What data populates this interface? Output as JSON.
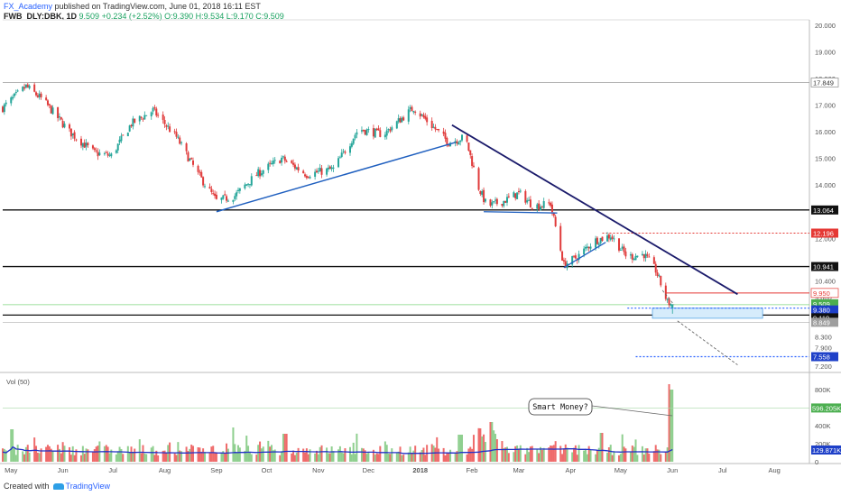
{
  "header": {
    "author": "FX_Academy",
    "published": "published on TradingView.com, June 01, 2018 16:11 EST",
    "symbol": "FWB_DLY:DBK, 1D",
    "price": "9.509",
    "change": "+0.234 (+2.52%)",
    "ohlc": "O:9.390 H:9.534 L:9.170 C:9.509"
  },
  "footer": {
    "created_with": "Created with",
    "brand": "TradingView"
  },
  "annotation": "Smart Money?",
  "colors": {
    "up": "#26a69a",
    "down": "#e03b3b",
    "volume_up": "#8fcf8f",
    "volume_down": "#ef6b6b",
    "trendline": "#1f5fbf",
    "downtrend": "#1b1b6b",
    "red_level": "#e53935",
    "blue_level": "#2962ff",
    "volume_ma": "#2231c8"
  },
  "chart_data": [
    {
      "type": "candlestick",
      "y_ticks": [
        "20.000",
        "19.000",
        "18.000",
        "17.000",
        "16.000",
        "15.000",
        "14.000",
        "13.000",
        "12.000",
        "11.000",
        "10.400",
        "9.800",
        "9.300",
        "8.900",
        "8.300",
        "7.900",
        "7.200"
      ],
      "ylim": [
        7.0,
        20.2
      ],
      "x_labels": [
        "May",
        "Jun",
        "Jul",
        "Aug",
        "Sep",
        "Oct",
        "Nov",
        "Dec",
        "2018",
        "Feb",
        "Mar",
        "Apr",
        "May",
        "Jun",
        "Jul",
        "Aug"
      ],
      "x_range": [
        "2017-04-26",
        "2018-08-22"
      ],
      "anchors": [
        [
          "2017-04-26",
          16.9
        ],
        [
          "2017-05-10",
          17.7
        ],
        [
          "2017-05-20",
          17.2
        ],
        [
          "2017-06-05",
          16.0
        ],
        [
          "2017-06-20",
          15.2
        ],
        [
          "2017-06-30",
          15.1
        ],
        [
          "2017-07-12",
          16.3
        ],
        [
          "2017-07-25",
          16.8
        ],
        [
          "2017-08-08",
          15.8
        ],
        [
          "2017-08-20",
          14.5
        ],
        [
          "2017-09-01",
          13.4
        ],
        [
          "2017-09-12",
          13.6
        ],
        [
          "2017-09-25",
          14.4
        ],
        [
          "2017-10-10",
          15.0
        ],
        [
          "2017-10-25",
          14.4
        ],
        [
          "2017-11-10",
          14.6
        ],
        [
          "2017-11-25",
          16.1
        ],
        [
          "2017-12-10",
          15.9
        ],
        [
          "2017-12-28",
          16.9
        ],
        [
          "2018-01-10",
          16.1
        ],
        [
          "2018-01-18",
          15.6
        ],
        [
          "2018-01-28",
          15.8
        ],
        [
          "2018-02-05",
          13.9
        ],
        [
          "2018-02-10",
          13.2
        ],
        [
          "2018-02-20",
          13.4
        ],
        [
          "2018-03-01",
          13.7
        ],
        [
          "2018-03-10",
          13.2
        ],
        [
          "2018-03-20",
          13.3
        ],
        [
          "2018-03-28",
          11.0
        ],
        [
          "2018-04-05",
          11.3
        ],
        [
          "2018-04-15",
          11.9
        ],
        [
          "2018-04-25",
          12.1
        ],
        [
          "2018-05-05",
          11.3
        ],
        [
          "2018-05-15",
          11.4
        ],
        [
          "2018-05-22",
          10.8
        ],
        [
          "2018-05-29",
          9.6
        ],
        [
          "2018-06-01",
          9.51
        ]
      ],
      "drawings": {
        "horizontal_levels": [
          17.849,
          13.064,
          10.941,
          9.119
        ],
        "red_dashed_level": 12.196,
        "red_solid_level": 9.95,
        "blue_dashed_levels": [
          9.38,
          7.558
        ],
        "green_price_line": 9.509,
        "uptrend_1": [
          [
            "2017-09-01",
            13.0
          ],
          [
            "2018-01-22",
            15.6
          ]
        ],
        "downtrend": [
          [
            "2018-01-20",
            16.25
          ],
          [
            "2018-07-10",
            9.9
          ]
        ],
        "box": [
          [
            "2018-05-20",
            9.38
          ],
          [
            "2018-07-25",
            9.0
          ]
        ]
      },
      "price_tags": [
        "17.849",
        "13.064",
        "12.196",
        "10.941",
        "9.950",
        "9.509",
        "9.380",
        "9.119",
        "8.849",
        "7.558"
      ]
    },
    {
      "type": "bar",
      "title": "Vol (50)",
      "y_ticks": [
        "800K",
        "600K",
        "400K",
        "200K",
        "0"
      ],
      "ylim": [
        0,
        900
      ],
      "volume_tags": [
        "596.205K",
        "129.871K"
      ],
      "spikes": [
        [
          "2017-05-01",
          360
        ],
        [
          "2017-09-10",
          380
        ],
        [
          "2017-10-12",
          310
        ],
        [
          "2018-01-25",
          300
        ],
        [
          "2018-02-05",
          370
        ],
        [
          "2018-02-12",
          440
        ],
        [
          "2018-04-20",
          320
        ],
        [
          "2018-05-31",
          860
        ],
        [
          "2018-06-01",
          800
        ]
      ]
    }
  ]
}
